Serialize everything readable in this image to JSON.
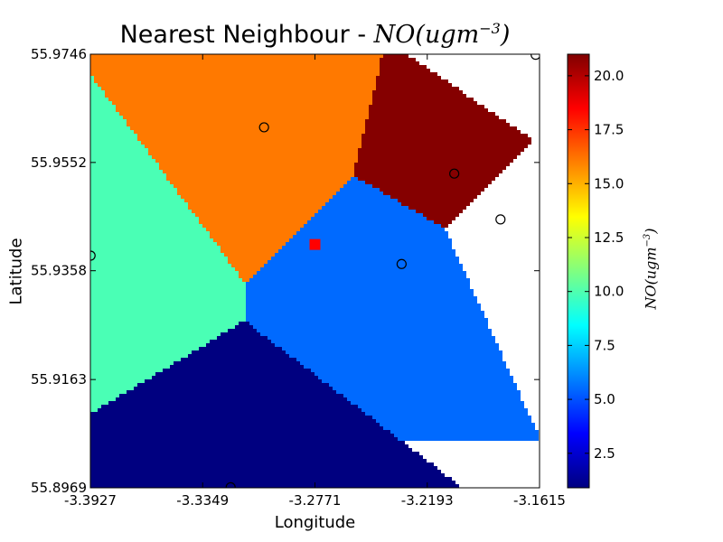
{
  "title": {
    "prefix": "Nearest Neighbour - ",
    "formula": "NO(ugm",
    "formula_exp": "−3",
    "formula_close": ")"
  },
  "xlabel": "Longitude",
  "ylabel": "Latitude",
  "colorbar": {
    "label": "NO(ugm",
    "label_exp": "−3",
    "label_close": ")",
    "vmin": 0.9,
    "vmax": 21.0,
    "ticks": [
      2.5,
      5.0,
      7.5,
      10.0,
      12.5,
      15.0,
      17.5,
      20.0
    ],
    "tick_labels": [
      "2.5",
      "5.0",
      "7.5",
      "10.0",
      "12.5",
      "15.0",
      "17.5",
      "20.0"
    ],
    "colormap": "jet"
  },
  "chart_data": {
    "type": "heatmap",
    "method": "nearest-neighbour interpolation (Voronoi regions)",
    "title": "Nearest Neighbour - NO(ugm^-3)",
    "xlabel": "Longitude",
    "ylabel": "Latitude",
    "xlim": [
      -3.3927,
      -3.1615
    ],
    "ylim": [
      55.8969,
      55.9746
    ],
    "x_ticks": [
      -3.3927,
      -3.3349,
      -3.2771,
      -3.2193,
      -3.1615
    ],
    "x_tick_labels": [
      "-3.3927",
      "-3.3349",
      "-3.2771",
      "-3.2193",
      "-3.1615"
    ],
    "y_ticks": [
      55.8969,
      55.9163,
      55.9358,
      55.9552,
      55.9746
    ],
    "y_tick_labels": [
      "55.8969",
      "55.9163",
      "55.9358",
      "55.9552",
      "55.9746"
    ],
    "grid": false,
    "stations": [
      {
        "lon": -3.3033,
        "lat": 55.9615,
        "value": 16.1
      },
      {
        "lon": -3.2054,
        "lat": 55.9532,
        "value": 20.9
      },
      {
        "lon": -3.1816,
        "lat": 55.945,
        "value": 6.5
      },
      {
        "lon": -3.2325,
        "lat": 55.937,
        "value": 5.5
      },
      {
        "lon": -3.3926,
        "lat": 55.9385,
        "value": 9.9
      },
      {
        "lon": -3.3205,
        "lat": 55.897,
        "value": 0.9
      },
      {
        "lon": -3.1635,
        "lat": 55.9745,
        "value": 9.9
      }
    ],
    "target": {
      "lon": -3.2771,
      "lat": 55.9405,
      "color": "#ff0000"
    }
  }
}
